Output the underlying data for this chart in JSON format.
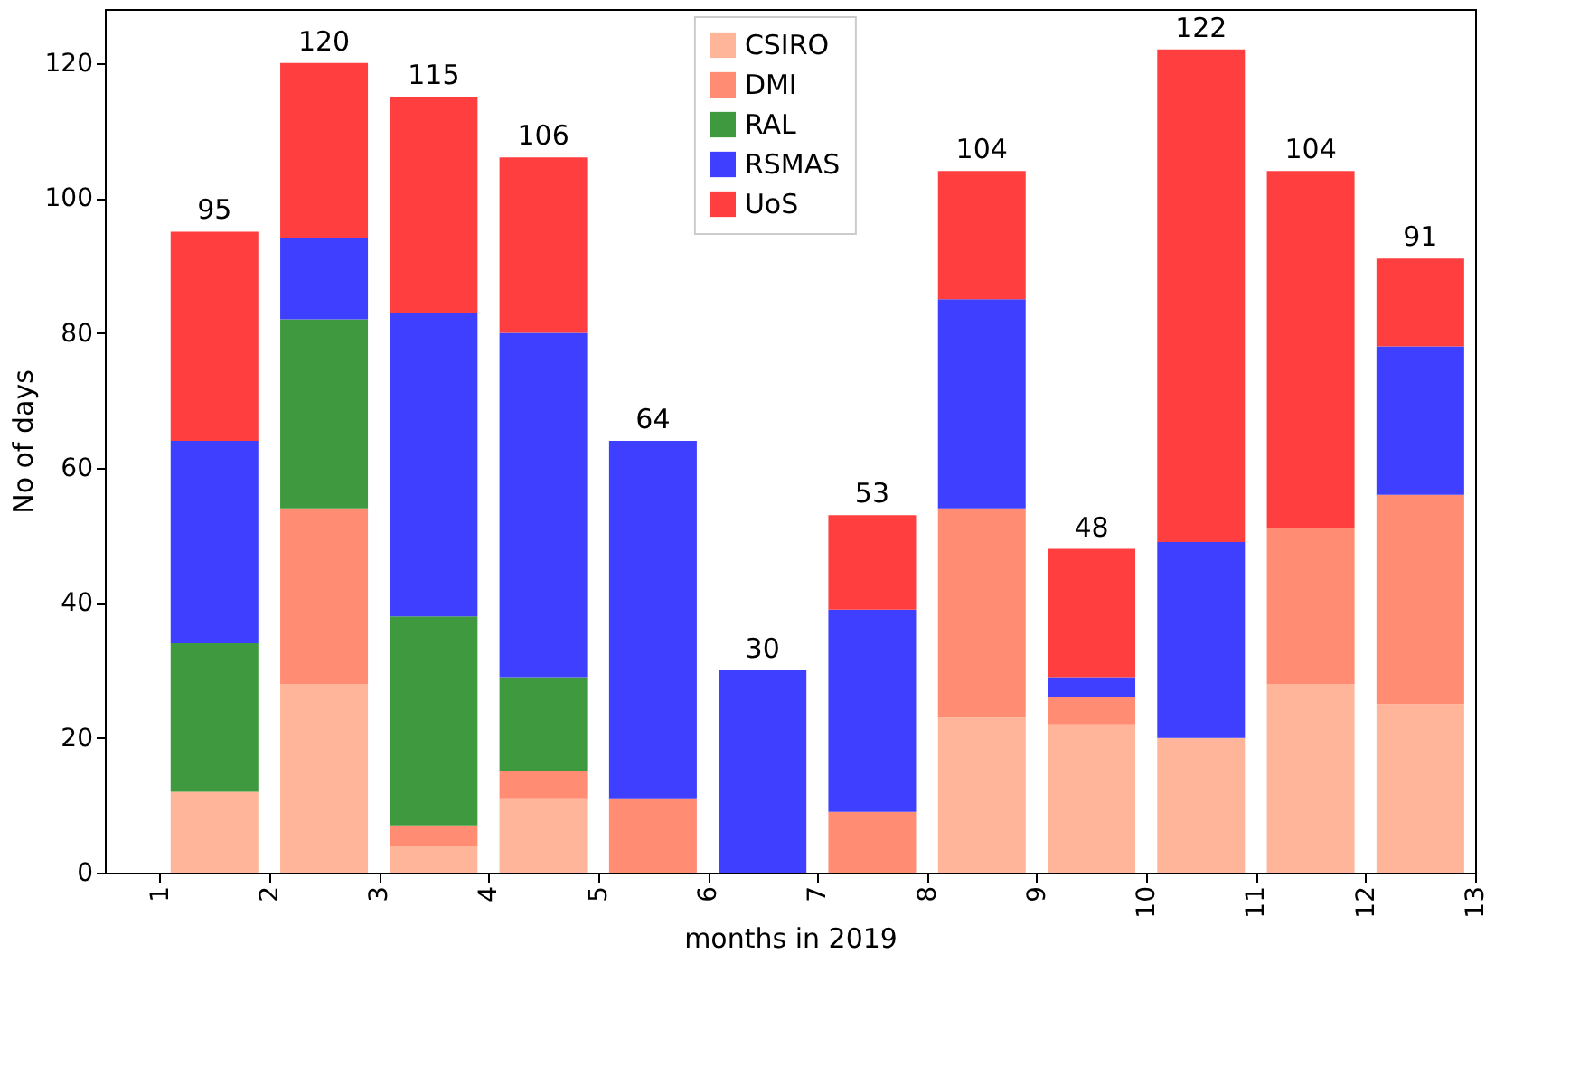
{
  "chart_data": {
    "type": "bar",
    "stacked": true,
    "xlabel": "months in 2019",
    "ylabel": "No of days",
    "x": [
      1.5,
      2.5,
      3.5,
      4.5,
      5.5,
      6.5,
      7.5,
      8.5,
      9.5,
      10.5,
      11.5,
      12.5
    ],
    "xlim": [
      0.5,
      13
    ],
    "xticks": [
      1,
      2,
      3,
      4,
      5,
      6,
      7,
      8,
      9,
      10,
      11,
      12,
      13
    ],
    "ylim": [
      0,
      128
    ],
    "yticks": [
      0,
      20,
      40,
      60,
      80,
      100,
      120
    ],
    "grid": false,
    "legend": "top",
    "totals": [
      "95",
      "120",
      "115",
      "106",
      "64",
      "30",
      "53",
      "104",
      "48",
      "122",
      "104",
      "91"
    ],
    "series": [
      {
        "name": "CSIRO",
        "color": "#ffb599",
        "values": [
          12,
          28,
          4,
          11,
          0,
          0,
          0,
          23,
          22,
          20,
          28,
          25
        ]
      },
      {
        "name": "DMI",
        "color": "#ff8c73",
        "values": [
          0,
          26,
          3,
          4,
          11,
          0,
          9,
          31,
          4,
          0,
          23,
          31
        ]
      },
      {
        "name": "RAL",
        "color": "#3f9a3f",
        "values": [
          22,
          28,
          31,
          14,
          0,
          0,
          0,
          0,
          0,
          0,
          0,
          0
        ]
      },
      {
        "name": "RSMAS",
        "color": "#3f3fff",
        "values": [
          30,
          12,
          45,
          51,
          53,
          30,
          30,
          31,
          3,
          29,
          0,
          22
        ]
      },
      {
        "name": "UoS",
        "color": "#ff3f3f",
        "values": [
          31,
          26,
          32,
          26,
          0,
          0,
          14,
          19,
          19,
          73,
          53,
          13
        ]
      }
    ]
  }
}
